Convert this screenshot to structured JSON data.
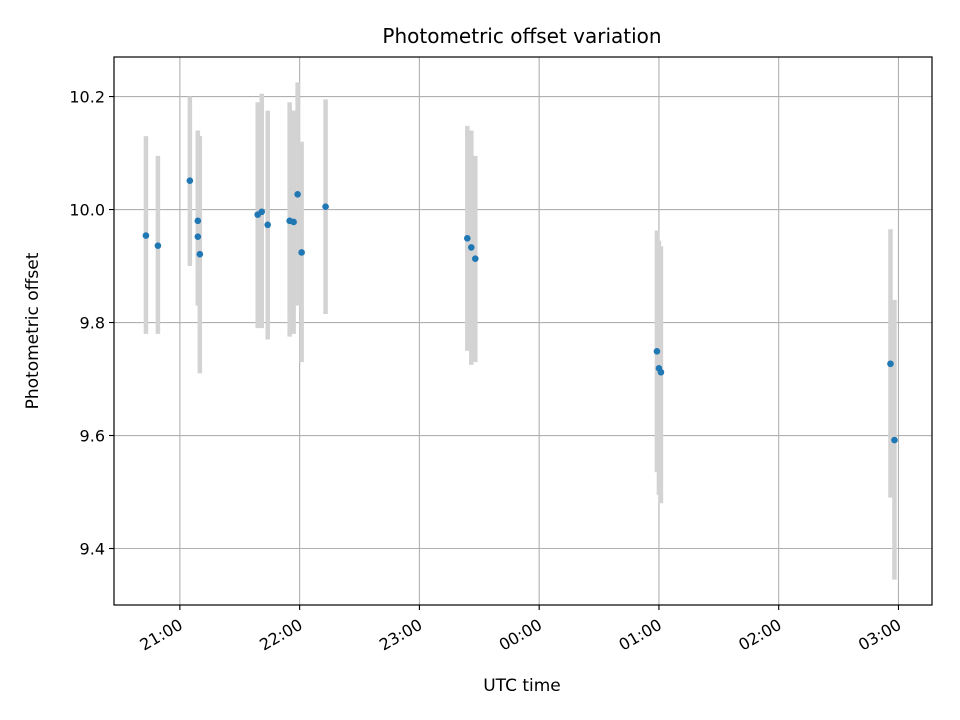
{
  "chart_data": {
    "type": "scatter",
    "title": "Photometric offset variation",
    "xlabel": "UTC time",
    "ylabel": "Photometric offset",
    "x_ticks": [
      "21:00",
      "22:00",
      "23:00",
      "00:00",
      "01:00",
      "02:00",
      "03:00"
    ],
    "y_ticks": [
      "9.4",
      "9.6",
      "9.8",
      "10.0",
      "10.2"
    ],
    "xlim_hours": [
      20.45,
      27.28
    ],
    "ylim": [
      9.3,
      10.27
    ],
    "grid": true,
    "marker_color": "#1f77b4",
    "errorbar_color": "#d3d3d3",
    "series": [
      {
        "points": [
          {
            "t": "20:43",
            "y": 9.954,
            "err_low": 9.78,
            "err_high": 10.13
          },
          {
            "t": "20:49",
            "y": 9.936,
            "err_low": 9.78,
            "err_high": 10.095
          },
          {
            "t": "21:05",
            "y": 10.051,
            "err_low": 9.9,
            "err_high": 10.2
          },
          {
            "t": "21:09",
            "y": 9.98,
            "err_low": 9.83,
            "err_high": 10.14
          },
          {
            "t": "21:09",
            "y": 9.952,
            "err_low": 9.84,
            "err_high": 10.13
          },
          {
            "t": "21:10",
            "y": 9.921,
            "err_low": 9.71,
            "err_high": 10.13
          },
          {
            "t": "21:39",
            "y": 9.991,
            "err_low": 9.79,
            "err_high": 10.19
          },
          {
            "t": "21:41",
            "y": 9.996,
            "err_low": 9.79,
            "err_high": 10.205
          },
          {
            "t": "21:44",
            "y": 9.973,
            "err_low": 9.77,
            "err_high": 10.175
          },
          {
            "t": "21:55",
            "y": 9.98,
            "err_low": 9.775,
            "err_high": 10.19
          },
          {
            "t": "21:57",
            "y": 9.978,
            "err_low": 9.78,
            "err_high": 10.175
          },
          {
            "t": "21:59",
            "y": 10.027,
            "err_low": 9.83,
            "err_high": 10.225
          },
          {
            "t": "22:01",
            "y": 9.924,
            "err_low": 9.73,
            "err_high": 10.12
          },
          {
            "t": "22:13",
            "y": 10.005,
            "err_low": 9.815,
            "err_high": 10.195
          },
          {
            "t": "23:24",
            "y": 9.949,
            "err_low": 9.75,
            "err_high": 10.148
          },
          {
            "t": "23:26",
            "y": 9.933,
            "err_low": 9.725,
            "err_high": 10.14
          },
          {
            "t": "23:28",
            "y": 9.913,
            "err_low": 9.73,
            "err_high": 10.095
          },
          {
            "t": "00:59",
            "y": 9.749,
            "err_low": 9.535,
            "err_high": 9.963
          },
          {
            "t": "01:00",
            "y": 9.719,
            "err_low": 9.495,
            "err_high": 9.945
          },
          {
            "t": "01:01",
            "y": 9.712,
            "err_low": 9.48,
            "err_high": 9.935
          },
          {
            "t": "02:56",
            "y": 9.727,
            "err_low": 9.49,
            "err_high": 9.965
          },
          {
            "t": "02:58",
            "y": 9.592,
            "err_low": 9.345,
            "err_high": 9.84
          }
        ]
      }
    ]
  }
}
